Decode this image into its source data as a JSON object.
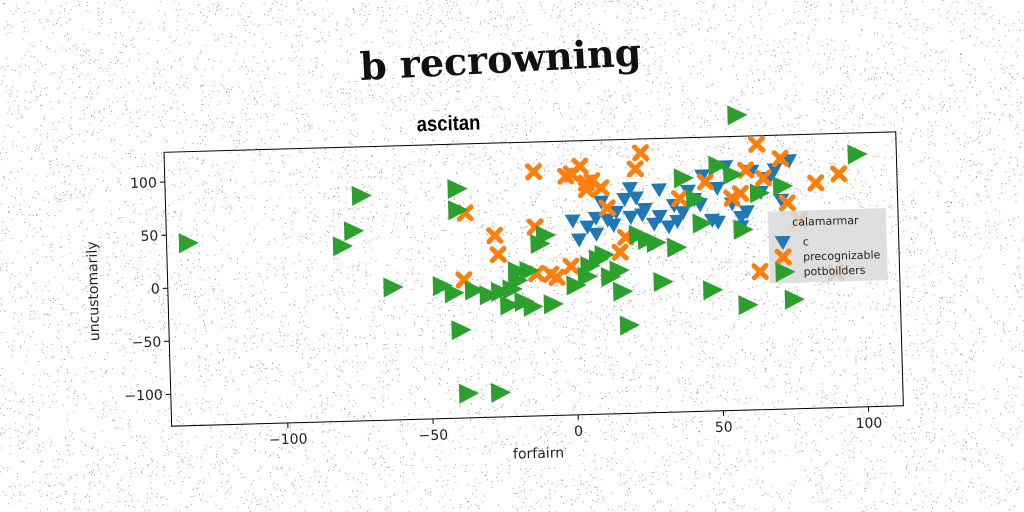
{
  "title": "b recrowning",
  "chart_data": {
    "type": "scatter",
    "subtitle": "ascitan",
    "xlabel": "forfairn",
    "ylabel": "uncustomarily",
    "xlim": [
      -140,
      112
    ],
    "ylim": [
      -130,
      128
    ],
    "xticks": [
      -100,
      -50,
      0,
      50,
      100
    ],
    "yticks": [
      -100,
      -50,
      0,
      50,
      100
    ],
    "xtick_labels": [
      "−100",
      "−50",
      "0",
      "50",
      "100"
    ],
    "ytick_labels": [
      "−100",
      "−50",
      "0",
      "50",
      "100"
    ],
    "grid": false,
    "legend": {
      "title": "calamarmar",
      "placement": "center-right"
    },
    "series": [
      {
        "name": "c",
        "marker": "triangle-down",
        "color": "#1f77b4",
        "points": [
          [
            0,
            53
          ],
          [
            5,
            47
          ],
          [
            8,
            40
          ],
          [
            12,
            53
          ],
          [
            15,
            60
          ],
          [
            18,
            72
          ],
          [
            20,
            82
          ],
          [
            22,
            73
          ],
          [
            25,
            62
          ],
          [
            28,
            48
          ],
          [
            30,
            55
          ],
          [
            33,
            45
          ],
          [
            35,
            65
          ],
          [
            38,
            58
          ],
          [
            40,
            78
          ],
          [
            42,
            70
          ],
          [
            45,
            92
          ],
          [
            48,
            50
          ],
          [
            50,
            48
          ],
          [
            53,
            100
          ],
          [
            55,
            65
          ],
          [
            58,
            52
          ],
          [
            60,
            57
          ],
          [
            62,
            95
          ],
          [
            65,
            75
          ],
          [
            68,
            88
          ],
          [
            70,
            96
          ],
          [
            72,
            67
          ],
          [
            75,
            104
          ],
          [
            24,
            57
          ],
          [
            14,
            48
          ],
          [
            44,
            65
          ],
          [
            30,
            80
          ],
          [
            10,
            70
          ],
          [
            2,
            35
          ],
          [
            58,
            43
          ],
          [
            36,
            50
          ],
          [
            50,
            80
          ],
          [
            20,
            55
          ],
          [
            8,
            55
          ]
        ]
      },
      {
        "name": "precognizable",
        "marker": "x",
        "color": "#ff7f0e",
        "points": [
          [
            -38,
            0
          ],
          [
            -37,
            63
          ],
          [
            -27,
            41
          ],
          [
            -26,
            23
          ],
          [
            -13,
            48
          ],
          [
            -13,
            4
          ],
          [
            -13,
            100
          ],
          [
            -8,
            3
          ],
          [
            -6,
            0
          ],
          [
            -2,
            95
          ],
          [
            0,
            97
          ],
          [
            3,
            104
          ],
          [
            5,
            88
          ],
          [
            5,
            82
          ],
          [
            7,
            90
          ],
          [
            10,
            83
          ],
          [
            12,
            64
          ],
          [
            16,
            22
          ],
          [
            22,
            100
          ],
          [
            24,
            115
          ],
          [
            37,
            71
          ],
          [
            46,
            86
          ],
          [
            55,
            70
          ],
          [
            58,
            74
          ],
          [
            60,
            96
          ],
          [
            64,
            120
          ],
          [
            66,
            88
          ],
          [
            72,
            106
          ],
          [
            78,
            48
          ],
          [
            74,
            64
          ],
          [
            64,
            0
          ],
          [
            92,
            90
          ],
          [
            90,
            -3
          ],
          [
            -1,
            10
          ],
          [
            18,
            36
          ],
          [
            84,
            82
          ]
        ]
      },
      {
        "name": "potboilders",
        "marker": "triangle-right",
        "color": "#2ca02c",
        "points": [
          [
            -133,
            42
          ],
          [
            -80,
            35
          ],
          [
            -76,
            49
          ],
          [
            -73,
            82
          ],
          [
            -63,
            -5
          ],
          [
            -46,
            -5
          ],
          [
            -42,
            -12
          ],
          [
            -40,
            86
          ],
          [
            -40,
            66
          ],
          [
            -40,
            -47
          ],
          [
            -38,
            -107
          ],
          [
            -27,
            -107
          ],
          [
            -35,
            -10
          ],
          [
            -30,
            -15
          ],
          [
            -26,
            -12
          ],
          [
            -23,
            -25
          ],
          [
            -22,
            -10
          ],
          [
            -20,
            7
          ],
          [
            -18,
            -22
          ],
          [
            -16,
            7
          ],
          [
            -15,
            -27
          ],
          [
            -12,
            32
          ],
          [
            -10,
            40
          ],
          [
            -8,
            -25
          ],
          [
            -20,
            -2
          ],
          [
            0,
            -8
          ],
          [
            4,
            0
          ],
          [
            5,
            10
          ],
          [
            8,
            16
          ],
          [
            10,
            20
          ],
          [
            12,
            -1
          ],
          [
            16,
            -15
          ],
          [
            18,
            -47
          ],
          [
            22,
            38
          ],
          [
            25,
            33
          ],
          [
            28,
            30
          ],
          [
            30,
            -7
          ],
          [
            38,
            90
          ],
          [
            42,
            70
          ],
          [
            44,
            47
          ],
          [
            47,
            -16
          ],
          [
            50,
            101
          ],
          [
            55,
            92
          ],
          [
            57,
            148
          ],
          [
            59,
            -31
          ],
          [
            72,
            80
          ],
          [
            75,
            -27
          ],
          [
            98,
            108
          ],
          [
            58,
            40
          ],
          [
            64,
            74
          ],
          [
            15,
            5
          ],
          [
            35,
            25
          ]
        ]
      }
    ]
  }
}
